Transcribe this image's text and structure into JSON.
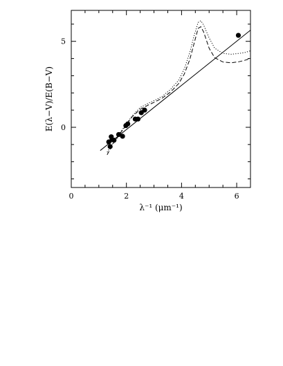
{
  "chart_data": {
    "type": "scatter",
    "xlabel": "λ⁻¹ (μm⁻¹)",
    "ylabel": "E(λ−V)/E(B−V)",
    "xlim": [
      0,
      6.5
    ],
    "ylim": [
      -3.5,
      6.8
    ],
    "x_ticks": [
      0,
      2,
      4,
      6
    ],
    "y_ticks": [
      0,
      5
    ],
    "x_minor_step": 0.5,
    "y_minor_step": 1,
    "grid": false,
    "series": [
      {
        "style": "points",
        "color": "#000000",
        "points": [
          [
            1.36,
            -0.85
          ],
          [
            1.41,
            -1.12
          ],
          [
            1.45,
            -0.55
          ],
          [
            1.48,
            -0.72
          ],
          [
            1.55,
            -0.75
          ],
          [
            1.72,
            -0.42
          ],
          [
            1.86,
            -0.52
          ],
          [
            1.98,
            0.1
          ],
          [
            2.05,
            0.2
          ],
          [
            2.32,
            0.48
          ],
          [
            2.42,
            0.48
          ],
          [
            2.54,
            0.85
          ],
          [
            2.66,
            1.0
          ],
          [
            6.06,
            5.35
          ]
        ]
      },
      {
        "style": "solid",
        "color": "#000000",
        "points": [
          [
            1.05,
            -1.35
          ],
          [
            6.5,
            5.65
          ]
        ]
      },
      {
        "style": "dashed",
        "color": "#000000",
        "points": [
          [
            1.3,
            -1.6
          ],
          [
            1.5,
            -1.0
          ],
          [
            1.8,
            -0.3
          ],
          [
            2.0,
            0.15
          ],
          [
            2.2,
            0.6
          ],
          [
            2.5,
            1.05
          ],
          [
            2.8,
            1.3
          ],
          [
            3.0,
            1.45
          ],
          [
            3.3,
            1.7
          ],
          [
            3.6,
            2.05
          ],
          [
            3.9,
            2.55
          ],
          [
            4.1,
            3.1
          ],
          [
            4.3,
            3.95
          ],
          [
            4.45,
            4.85
          ],
          [
            4.6,
            5.75
          ],
          [
            4.7,
            5.85
          ],
          [
            4.8,
            5.55
          ],
          [
            5.0,
            4.6
          ],
          [
            5.2,
            4.05
          ],
          [
            5.5,
            3.8
          ],
          [
            5.8,
            3.75
          ],
          [
            6.1,
            3.82
          ],
          [
            6.3,
            3.9
          ],
          [
            6.5,
            4.0
          ]
        ]
      },
      {
        "style": "dotted",
        "color": "#000000",
        "points": [
          [
            1.3,
            -1.45
          ],
          [
            1.5,
            -0.95
          ],
          [
            1.8,
            -0.25
          ],
          [
            2.0,
            0.2
          ],
          [
            2.2,
            0.65
          ],
          [
            2.5,
            1.15
          ],
          [
            2.8,
            1.4
          ],
          [
            3.0,
            1.55
          ],
          [
            3.3,
            1.8
          ],
          [
            3.6,
            2.2
          ],
          [
            3.9,
            2.75
          ],
          [
            4.1,
            3.4
          ],
          [
            4.3,
            4.35
          ],
          [
            4.45,
            5.3
          ],
          [
            4.6,
            6.1
          ],
          [
            4.7,
            6.2
          ],
          [
            4.8,
            5.95
          ],
          [
            5.0,
            5.2
          ],
          [
            5.2,
            4.6
          ],
          [
            5.5,
            4.3
          ],
          [
            5.8,
            4.25
          ],
          [
            6.1,
            4.3
          ],
          [
            6.3,
            4.35
          ],
          [
            6.5,
            4.45
          ]
        ]
      }
    ]
  }
}
